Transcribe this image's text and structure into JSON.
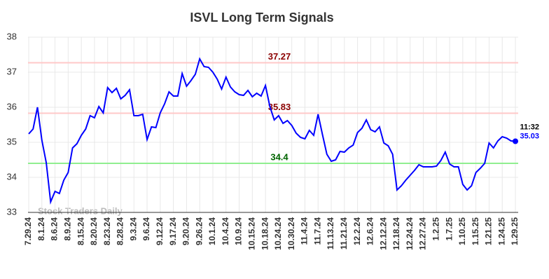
{
  "chart_data": {
    "type": "line",
    "title": "ISVL Long Term Signals",
    "watermark": "Stock Traders Daily",
    "categories": [
      "7.29.24",
      null,
      null,
      "8.1.24",
      null,
      null,
      "8.6.24",
      null,
      null,
      "8.9.24",
      null,
      null,
      "8.15.24",
      null,
      null,
      "8.20.24",
      null,
      null,
      "8.23.24",
      null,
      null,
      "8.28.24",
      null,
      null,
      "9.3.24",
      null,
      null,
      "9.6.24",
      null,
      null,
      "9.12.24",
      null,
      null,
      "9.17.24",
      null,
      null,
      "9.20.24",
      null,
      null,
      "9.26.24",
      null,
      null,
      "10.1.24",
      null,
      null,
      "10.4.24",
      null,
      null,
      "10.9.24",
      null,
      null,
      "10.15.24",
      null,
      null,
      "10.18.24",
      null,
      null,
      "10.24.24",
      null,
      null,
      "10.30.24",
      null,
      null,
      "11.4.24",
      null,
      null,
      "11.7.24",
      null,
      null,
      "11.13.24",
      null,
      null,
      "11.21.24",
      null,
      null,
      "12.2.24",
      null,
      null,
      "12.6.24",
      null,
      null,
      "12.12.24",
      null,
      null,
      "12.18.24",
      null,
      null,
      "12.24.24",
      null,
      null,
      "12.27.24",
      null,
      null,
      "1.2.25",
      null,
      null,
      "1.7.25",
      null,
      null,
      "1.10.25",
      null,
      null,
      "1.15.25",
      null,
      null,
      "1.21.25",
      null,
      null,
      "1.24.25",
      null,
      null,
      "1.29.25"
    ],
    "series": [
      {
        "color": "#0000ff",
        "values": [
          35.24,
          35.38,
          36.0,
          35.06,
          34.42,
          33.3,
          33.6,
          33.54,
          33.92,
          34.14,
          34.84,
          34.96,
          35.2,
          35.38,
          35.76,
          35.7,
          36.02,
          35.84,
          36.56,
          36.42,
          36.54,
          36.24,
          36.34,
          36.5,
          35.76,
          35.76,
          35.8,
          35.08,
          35.44,
          35.42,
          35.84,
          36.1,
          36.44,
          36.32,
          36.32,
          36.96,
          36.6,
          36.76,
          36.94,
          37.38,
          37.16,
          37.14,
          37.0,
          36.8,
          36.52,
          36.86,
          36.58,
          36.44,
          36.36,
          36.34,
          36.48,
          36.3,
          36.4,
          36.32,
          36.62,
          36.02,
          35.64,
          35.76,
          35.54,
          35.62,
          35.48,
          35.26,
          35.14,
          35.1,
          35.34,
          35.2,
          35.8,
          35.22,
          34.66,
          34.46,
          34.5,
          34.74,
          34.72,
          34.84,
          34.92,
          35.28,
          35.4,
          35.64,
          35.36,
          35.3,
          35.44,
          34.98,
          34.9,
          34.66,
          33.64,
          33.76,
          33.92,
          34.06,
          34.2,
          34.36,
          34.3,
          34.3,
          34.3,
          34.32,
          34.48,
          34.72,
          34.38,
          34.3,
          34.3,
          33.8,
          33.64,
          33.76,
          34.14,
          34.26,
          34.4,
          34.98,
          34.84,
          35.04,
          35.16,
          35.12,
          35.04,
          35.03
        ]
      }
    ],
    "hlines": [
      {
        "value": 37.27,
        "color": "#ffc8c8",
        "label_color": "#8b0000"
      },
      {
        "value": 35.83,
        "color": "#ffc8c8",
        "label_color": "#8b0000"
      },
      {
        "value": 34.4,
        "color": "#90ee90",
        "label_color": "#006400"
      }
    ],
    "last_time": "11:32",
    "ylim": [
      33,
      38
    ],
    "yticks": [
      33,
      34,
      35,
      36,
      37,
      38
    ],
    "grid": true
  }
}
